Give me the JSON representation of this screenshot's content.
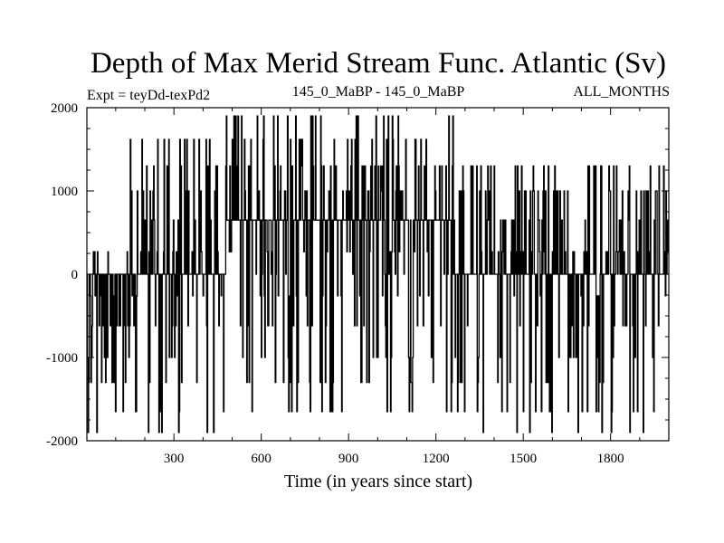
{
  "chart_data": {
    "type": "line",
    "title": "Depth of Max Merid Stream Func. Atlantic (Sv)",
    "subtitle_left": "Expt = teyDd-texPd2",
    "subtitle_center": "145_0_MaBP - 145_0_MaBP",
    "subtitle_right": "ALL_MONTHS",
    "xlabel": "Time (in years since start)",
    "ylabel": "",
    "xlim": [
      1,
      2000
    ],
    "ylim": [
      -2000,
      2000
    ],
    "xticks": [
      300,
      600,
      900,
      1200,
      1500,
      1800
    ],
    "yticks": [
      -2000,
      -1000,
      0,
      1000,
      2000
    ],
    "xtick_labels": [
      "300",
      "600",
      "900",
      "1200",
      "1500",
      "1800"
    ],
    "ytick_labels": [
      "-2000",
      "-1000",
      "0",
      "1000",
      "2000"
    ],
    "grid": false,
    "levels": [
      -1900,
      -1650,
      -1300,
      -1000,
      -620,
      -260,
      0,
      270,
      650,
      1000,
      1300,
      1620,
      1900
    ],
    "segments": [
      {
        "x": [
          1,
          150
        ],
        "base": 0,
        "low_levels": [
          -1900,
          -1650,
          -1300,
          -1000,
          -620,
          -260
        ],
        "high_levels": [
          270
        ],
        "high_prob": 0.05
      },
      {
        "x": [
          150,
          480
        ],
        "base": 0,
        "low_levels": [
          -1900,
          -1650,
          -1300,
          -1000,
          -620,
          -260
        ],
        "high_levels": [
          270,
          650,
          1000,
          1300,
          1620
        ],
        "high_prob": 0.35
      },
      {
        "x": [
          480,
          1260
        ],
        "base": 650,
        "low_levels": [
          -1650,
          -1300,
          -1000,
          -620,
          -260,
          0,
          270
        ],
        "high_levels": [
          1000,
          1300,
          1620,
          1900
        ],
        "high_prob": 0.25
      },
      {
        "x": [
          1260,
          1450
        ],
        "base": 0,
        "low_levels": [
          -1900,
          -1650,
          -1300,
          -1000,
          -620
        ],
        "high_levels": [
          270,
          650,
          1000,
          1300
        ],
        "high_prob": 0.35
      },
      {
        "x": [
          1450,
          2000
        ],
        "base": 0,
        "low_levels": [
          -1900,
          -1650,
          -1300,
          -1000,
          -620,
          -260
        ],
        "high_levels": [
          270,
          650,
          1000,
          1300
        ],
        "high_prob": 0.3
      }
    ],
    "seed": 7,
    "line_color": "#000000"
  }
}
